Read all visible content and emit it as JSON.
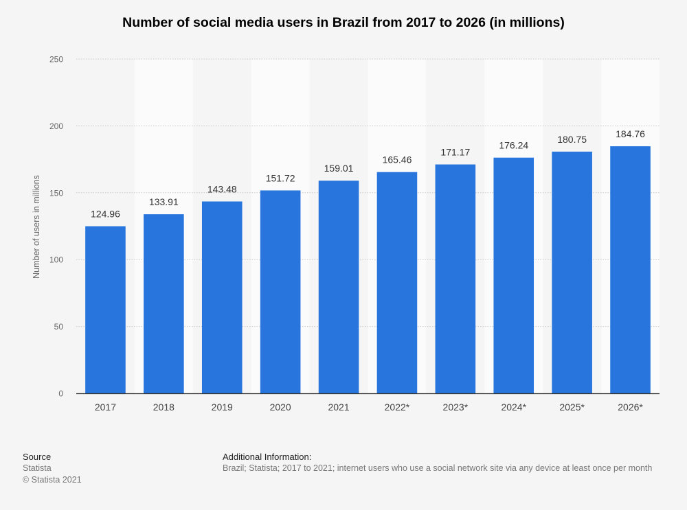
{
  "chart_data": {
    "type": "bar",
    "title": "Number of social media users in Brazil from 2017 to 2026 (in millions)",
    "ylabel": "Number of users in millions",
    "xlabel": "",
    "categories": [
      "2017",
      "2018",
      "2019",
      "2020",
      "2021",
      "2022*",
      "2023*",
      "2024*",
      "2025*",
      "2026*"
    ],
    "values": [
      124.96,
      133.91,
      143.48,
      151.72,
      159.01,
      165.46,
      171.17,
      176.24,
      180.75,
      184.76
    ],
    "value_labels": [
      "124.96",
      "133.91",
      "143.48",
      "151.72",
      "159.01",
      "165.46",
      "171.17",
      "176.24",
      "180.75",
      "184.76"
    ],
    "ylim": [
      0,
      250
    ],
    "yticks": [
      0,
      50,
      100,
      150,
      200,
      250
    ],
    "grid": true,
    "bar_color": "#2876dd"
  },
  "footer": {
    "source_heading": "Source",
    "source_name": "Statista",
    "copyright": "© Statista 2021",
    "info_heading": "Additional Information:",
    "info_text": "Brazil; Statista; 2017 to 2021; internet users who use a social network site via any device at least once per month"
  }
}
